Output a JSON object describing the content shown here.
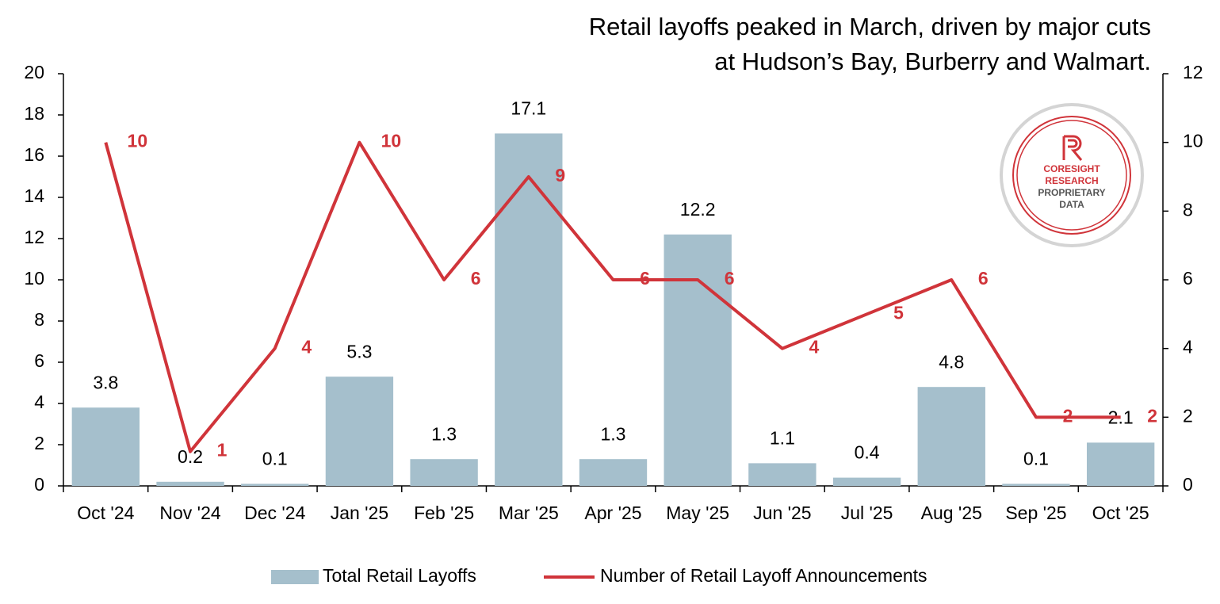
{
  "chart_data": {
    "type": "bar",
    "title": [
      "Retail layoffs peaked in March, driven by major cuts",
      "at Hudson’s Bay, Burberry and Walmart."
    ],
    "badge": [
      "CORESIGHT",
      "RESEARCH",
      "PROPRIETARY",
      "DATA"
    ],
    "categories": [
      "Oct '24",
      "Nov '24",
      "Dec '24",
      "Jan '25",
      "Feb '25",
      "Mar '25",
      "Apr '25",
      "May '25",
      "Jun '25",
      "Jul '25",
      "Aug '25",
      "Sep '25",
      "Oct '25"
    ],
    "series": [
      {
        "name": "Total Retail Layoffs",
        "type": "bar",
        "color": "#a5bfcc",
        "values": [
          3.8,
          0.2,
          0.1,
          5.3,
          1.3,
          17.1,
          1.3,
          12.2,
          1.1,
          0.4,
          4.8,
          0.1,
          2.1
        ]
      },
      {
        "name": "Number of Retail Layoff Announcements",
        "type": "line",
        "axis": "y2",
        "color": "#d0343a",
        "values": [
          10,
          1,
          4,
          10,
          6,
          9,
          6,
          6,
          4,
          5,
          6,
          2,
          2
        ]
      }
    ],
    "ylim": [
      0,
      20
    ],
    "yticks": [
      0,
      2,
      4,
      6,
      8,
      10,
      12,
      14,
      16,
      18,
      20
    ],
    "y2lim": [
      0,
      12
    ],
    "y2ticks": [
      0,
      2,
      4,
      6,
      8,
      10,
      12
    ],
    "grid": false,
    "legend": "bottom"
  }
}
